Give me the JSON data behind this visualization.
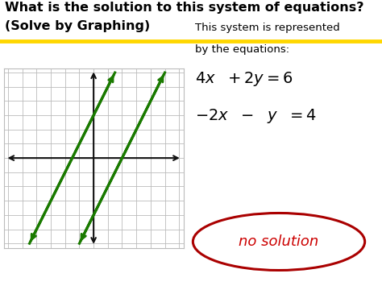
{
  "title_line1": "What is the solution to this system of equations?",
  "title_line2": "(Solve by Graphing)",
  "title_color": "#000000",
  "title_fontsize": 11.5,
  "separator_color": "#FFD700",
  "bg_color": "#ffffff",
  "grid_bg": "#ffffff",
  "grid_color": "#bbbbbb",
  "axis_color": "#111111",
  "line1_color": "#1a7a00",
  "line2_color": "#1a7a00",
  "eq_color": "#000000",
  "solution_color": "#cc0000",
  "ellipse_color": "#aa0000",
  "desc_line1": "This system is represented",
  "desc_line2": "by the equations:",
  "desc_color": "#000000",
  "desc_fontsize": 9.5,
  "eq1_fontsize": 14,
  "eq2_fontsize": 14,
  "sol_fontsize": 13,
  "line1_slope": 2,
  "line1_intercept": 3,
  "line2_slope": 2,
  "line2_intercept": -4,
  "xmin": -6,
  "xmax": 6,
  "ymin": -6,
  "ymax": 6
}
